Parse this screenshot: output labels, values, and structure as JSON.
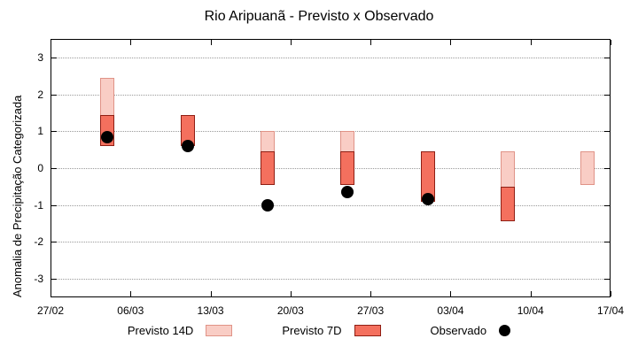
{
  "chart_data": {
    "type": "bar",
    "title": "Rio Aripuanã - Previsto x Observado",
    "xlabel": "",
    "ylabel": "Anomalia de Precipitação Categorizada",
    "ylim": [
      -3.5,
      3.5
    ],
    "yticks": [
      -3,
      -2,
      -1,
      0,
      1,
      2,
      3
    ],
    "grid": "horizontal-dotted",
    "legend_position": "bottom",
    "x_axis": {
      "tick_labels": [
        "27/02",
        "06/03",
        "13/03",
        "20/03",
        "27/03",
        "03/04",
        "10/04",
        "17/04"
      ],
      "tick_day_offsets": [
        0,
        7,
        14,
        21,
        28,
        35,
        42,
        49
      ],
      "range_days": [
        0,
        49
      ]
    },
    "series": [
      {
        "name": "Previsto 14D",
        "type": "range-bar",
        "color": "#f9cdc5",
        "border": "#e09387",
        "points": [
          {
            "day": 5,
            "low": 0.6,
            "high": 2.45
          },
          {
            "day": 12,
            "low": 0.6,
            "high": 1.45
          },
          {
            "day": 19,
            "low": -0.45,
            "high": 1.0
          },
          {
            "day": 26,
            "low": -0.45,
            "high": 1.0
          },
          {
            "day": 33,
            "low": -0.9,
            "high": 0.45
          },
          {
            "day": 40,
            "low": -1.45,
            "high": 0.45
          },
          {
            "day": 47,
            "low": -0.45,
            "high": 0.45
          }
        ]
      },
      {
        "name": "Previsto 7D",
        "type": "range-bar",
        "color": "#f4705e",
        "border": "#8f1f14",
        "points": [
          {
            "day": 5,
            "low": 0.6,
            "high": 1.45
          },
          {
            "day": 12,
            "low": 0.6,
            "high": 1.45
          },
          {
            "day": 19,
            "low": -0.45,
            "high": 0.45
          },
          {
            "day": 26,
            "low": -0.45,
            "high": 0.45
          },
          {
            "day": 33,
            "low": -0.9,
            "high": 0.45
          },
          {
            "day": 40,
            "low": -1.45,
            "high": -0.5
          }
        ]
      },
      {
        "name": "Observado",
        "type": "scatter",
        "color": "#000000",
        "points": [
          {
            "day": 5,
            "value": 0.85
          },
          {
            "day": 12,
            "value": 0.6
          },
          {
            "day": 19,
            "value": -1.0
          },
          {
            "day": 26,
            "value": -0.65
          },
          {
            "day": 33,
            "value": -0.85
          }
        ]
      }
    ],
    "legend": [
      {
        "label": "Previsto 14D",
        "swatch": "#f9cdc5",
        "marker": "box"
      },
      {
        "label": "Previsto 7D",
        "swatch": "#f4705e",
        "marker": "box"
      },
      {
        "label": "Observado",
        "swatch": "#000000",
        "marker": "circle"
      }
    ]
  }
}
